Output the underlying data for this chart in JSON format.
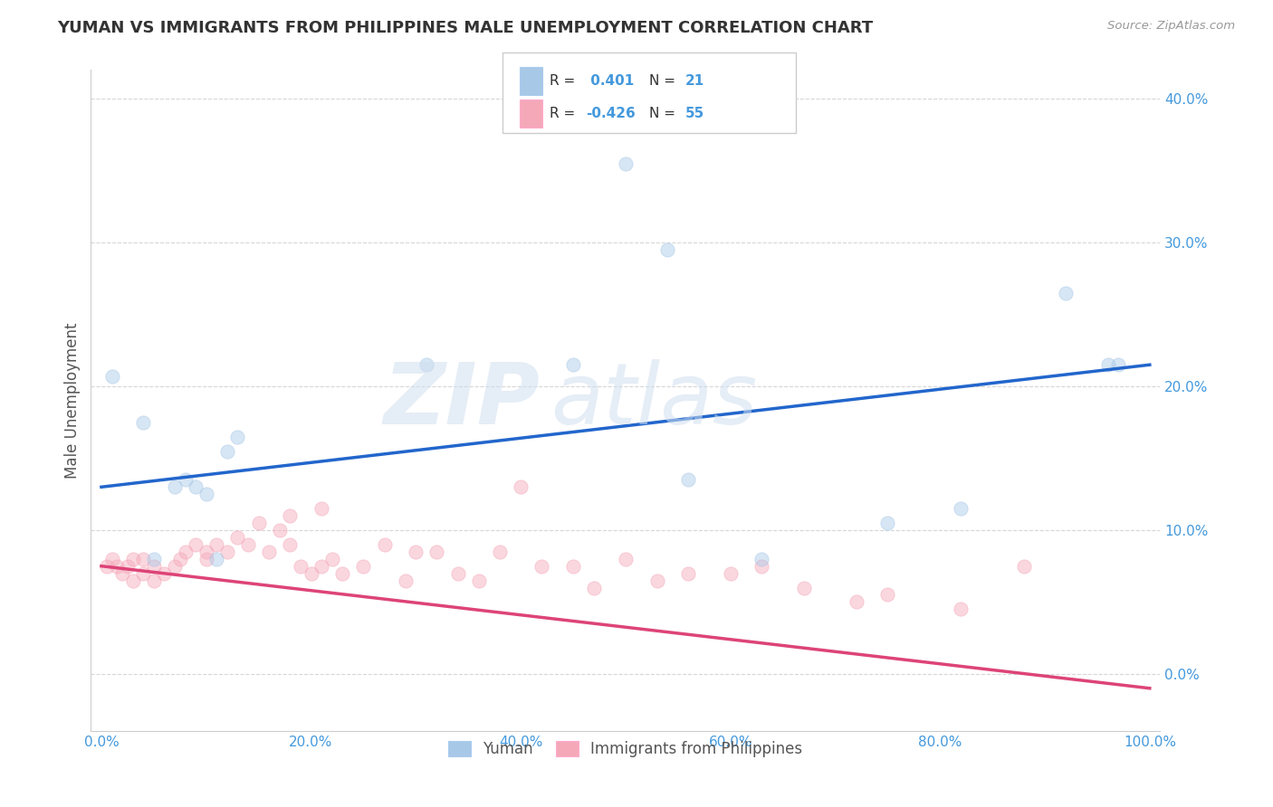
{
  "title": "YUMAN VS IMMIGRANTS FROM PHILIPPINES MALE UNEMPLOYMENT CORRELATION CHART",
  "source": "Source: ZipAtlas.com",
  "ylabel": "Male Unemployment",
  "xlim": [
    -0.01,
    1.01
  ],
  "ylim": [
    -0.04,
    0.42
  ],
  "xticks": [
    0.0,
    0.2,
    0.4,
    0.6,
    0.8,
    1.0
  ],
  "xticklabels": [
    "0.0%",
    "20.0%",
    "40.0%",
    "60.0%",
    "80.0%",
    "100.0%"
  ],
  "yticks": [
    0.0,
    0.1,
    0.2,
    0.3,
    0.4
  ],
  "yticklabels": [
    "0.0%",
    "10.0%",
    "20.0%",
    "30.0%",
    "40.0%"
  ],
  "series1_color": "#a8c8e8",
  "series2_color": "#f5a8b8",
  "line1_color": "#2266cc",
  "line2_color": "#dd4477",
  "watermark_zip": "ZIP",
  "watermark_atlas": "atlas",
  "background_color": "#ffffff",
  "blue_scatter_x": [
    0.01,
    0.04,
    0.05,
    0.07,
    0.08,
    0.09,
    0.1,
    0.11,
    0.12,
    0.13,
    0.31,
    0.45,
    0.5,
    0.54,
    0.56,
    0.63,
    0.75,
    0.82,
    0.92,
    0.96,
    0.97
  ],
  "blue_scatter_y": [
    0.207,
    0.175,
    0.08,
    0.13,
    0.135,
    0.13,
    0.125,
    0.08,
    0.155,
    0.165,
    0.215,
    0.215,
    0.355,
    0.295,
    0.135,
    0.08,
    0.105,
    0.115,
    0.265,
    0.215,
    0.215
  ],
  "pink_scatter_x": [
    0.005,
    0.01,
    0.015,
    0.02,
    0.025,
    0.03,
    0.03,
    0.04,
    0.04,
    0.05,
    0.05,
    0.06,
    0.07,
    0.075,
    0.08,
    0.09,
    0.1,
    0.1,
    0.11,
    0.12,
    0.13,
    0.14,
    0.15,
    0.16,
    0.17,
    0.18,
    0.18,
    0.19,
    0.2,
    0.21,
    0.21,
    0.22,
    0.23,
    0.25,
    0.27,
    0.29,
    0.3,
    0.32,
    0.34,
    0.36,
    0.38,
    0.4,
    0.42,
    0.45,
    0.47,
    0.5,
    0.53,
    0.56,
    0.6,
    0.63,
    0.67,
    0.72,
    0.75,
    0.82,
    0.88
  ],
  "pink_scatter_y": [
    0.075,
    0.08,
    0.075,
    0.07,
    0.075,
    0.065,
    0.08,
    0.07,
    0.08,
    0.075,
    0.065,
    0.07,
    0.075,
    0.08,
    0.085,
    0.09,
    0.08,
    0.085,
    0.09,
    0.085,
    0.095,
    0.09,
    0.105,
    0.085,
    0.1,
    0.09,
    0.11,
    0.075,
    0.07,
    0.075,
    0.115,
    0.08,
    0.07,
    0.075,
    0.09,
    0.065,
    0.085,
    0.085,
    0.07,
    0.065,
    0.085,
    0.13,
    0.075,
    0.075,
    0.06,
    0.08,
    0.065,
    0.07,
    0.07,
    0.075,
    0.06,
    0.05,
    0.055,
    0.045,
    0.075
  ],
  "line1_x": [
    0.0,
    1.0
  ],
  "line1_y": [
    0.13,
    0.215
  ],
  "line2_x": [
    0.0,
    1.0
  ],
  "line2_y": [
    0.075,
    -0.01
  ],
  "marker_size": 120,
  "marker_alpha": 0.45,
  "grid_color": "#cccccc",
  "tick_color": "#4499dd",
  "legend_r1_val": "0.401",
  "legend_n1_val": "21",
  "legend_r2_val": "-0.426",
  "legend_n2_val": "55"
}
